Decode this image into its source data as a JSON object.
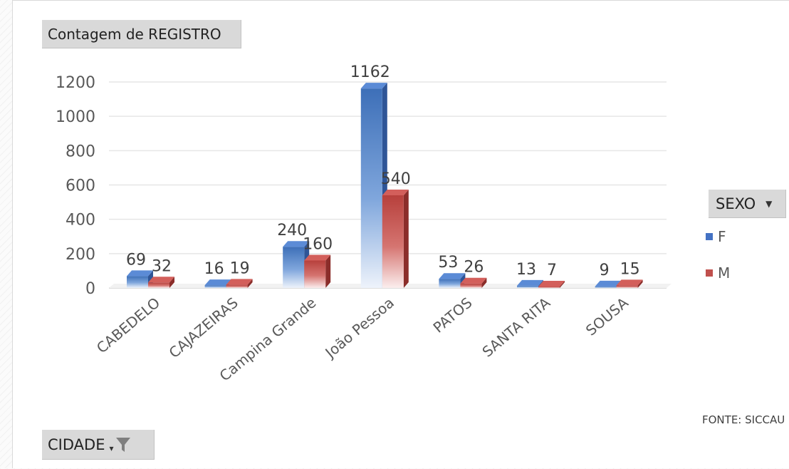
{
  "chart_data": {
    "type": "bar",
    "title": "Contagem de REGISTRO",
    "categories": [
      "CABEDELO",
      "CAJAZEIRAS",
      "Campina Grande",
      "João Pessoa",
      "PATOS",
      "SANTA RITA",
      "SOUSA"
    ],
    "series": [
      {
        "name": "F",
        "values": [
          69,
          16,
          240,
          1162,
          53,
          13,
          9
        ],
        "color": "#4472C4"
      },
      {
        "name": "M",
        "values": [
          32,
          19,
          160,
          540,
          26,
          7,
          15
        ],
        "color": "#C0504D"
      }
    ],
    "ylim": [
      0,
      1200
    ],
    "yticks": [
      0,
      200,
      400,
      600,
      800,
      1000,
      1200
    ],
    "grid": true,
    "legend_position": "right",
    "legend_title": "SEXO",
    "axis_field": "CIDADE",
    "source": "FONTE: SICCAU"
  }
}
